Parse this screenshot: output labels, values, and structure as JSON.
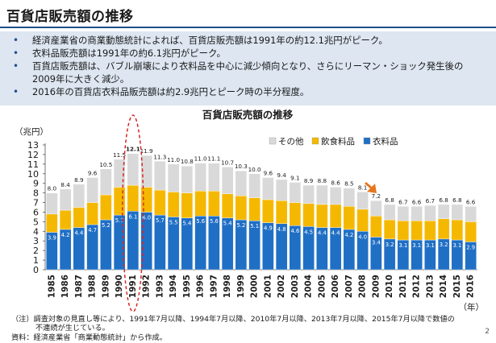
{
  "slide": {
    "title": "百貨店販売額の推移",
    "page_number": "2"
  },
  "bullets": [
    "経済産業省の商業動態統計によれば、百貨店販売額は1991年の約12.1兆円がピーク。",
    "衣料品販売額は1991年の約6.1兆円がピーク。",
    "百貨店販売額は、バブル崩壊により衣料品を中心に減少傾向となり、さらにリーマン・ショック発生後の2009年に大きく減少。",
    "2016年の百貨店衣料品販売額は約2.9兆円とピーク時の半分程度。"
  ],
  "notes": {
    "line1": "（注）調査対象の見直し等により、1991年7月以降、1994年7月以降、2010年7月以降、2013年7月以降、2015年7月以降で数値の",
    "line2": "不連続が生じている。",
    "source": "資料：経済産業省「商業動態統計」から作成。"
  },
  "colors": {
    "clothing": "#1f6fc5",
    "food": "#f5b800",
    "other": "#d9d9d9",
    "highlight_ellipse": "#d62728",
    "arrow": "#e8761e"
  },
  "chart_data": {
    "type": "bar",
    "stacked": true,
    "title": "百貨店販売額の推移",
    "ylabel": "（兆円）",
    "xlabel": "（年）",
    "ylim": [
      0,
      13
    ],
    "yticks": [
      0,
      1,
      2,
      3,
      4,
      5,
      6,
      7,
      8,
      9,
      10,
      11,
      12,
      13
    ],
    "legend_position": "top-right",
    "categories": [
      "1985",
      "1986",
      "1987",
      "1988",
      "1989",
      "1990",
      "1991",
      "1992",
      "1993",
      "1994",
      "1995",
      "1996",
      "1997",
      "1998",
      "1999",
      "2000",
      "2001",
      "2002",
      "2003",
      "2004",
      "2005",
      "2006",
      "2007",
      "2008",
      "2009",
      "2010",
      "2011",
      "2012",
      "2013",
      "2014",
      "2015",
      "2016"
    ],
    "series": [
      {
        "name": "衣料品",
        "color_key": "clothing",
        "values": [
          3.9,
          4.2,
          4.4,
          4.7,
          5.2,
          5.7,
          6.1,
          6.0,
          5.7,
          5.5,
          5.4,
          5.6,
          5.6,
          5.4,
          5.2,
          5.1,
          4.9,
          4.8,
          4.6,
          4.5,
          4.4,
          4.4,
          4.2,
          4.0,
          3.4,
          3.2,
          3.1,
          3.1,
          3.1,
          3.2,
          3.1,
          2.9
        ]
      },
      {
        "name": "飲食料品",
        "color_key": "food",
        "values": [
          1.9,
          2.0,
          2.1,
          2.3,
          2.6,
          2.9,
          2.7,
          2.6,
          2.6,
          2.6,
          2.6,
          2.6,
          2.6,
          2.5,
          2.5,
          2.4,
          2.4,
          2.4,
          2.4,
          2.4,
          2.4,
          2.4,
          2.4,
          2.3,
          2.2,
          2.0,
          2.0,
          2.0,
          2.0,
          2.1,
          2.1,
          2.1
        ]
      },
      {
        "name": "その他",
        "color_key": "other",
        "values": [
          2.2,
          2.2,
          2.4,
          2.6,
          2.7,
          2.9,
          3.3,
          3.3,
          3.0,
          2.9,
          2.8,
          2.9,
          2.9,
          2.8,
          2.6,
          2.5,
          2.3,
          2.2,
          2.1,
          1.9,
          2.0,
          1.8,
          1.9,
          1.8,
          1.6,
          1.6,
          1.5,
          1.5,
          1.6,
          1.5,
          1.6,
          1.6
        ]
      }
    ],
    "totals": [
      8.0,
      8.4,
      8.9,
      9.6,
      10.5,
      11.5,
      12.1,
      11.9,
      11.3,
      11.0,
      10.8,
      11.0,
      11.1,
      10.7,
      10.3,
      10.0,
      9.6,
      9.4,
      9.1,
      8.9,
      8.8,
      8.6,
      8.5,
      8.1,
      7.2,
      6.8,
      6.7,
      6.6,
      6.7,
      6.8,
      6.8,
      6.6
    ],
    "clothing_label_value": [
      3.9,
      4.2,
      4.4,
      4.7,
      5.2,
      5.7,
      6.1,
      6.0,
      5.7,
      5.5,
      5.4,
      5.6,
      5.6,
      5.4,
      5.2,
      5.1,
      4.9,
      4.8,
      4.6,
      4.5,
      4.4,
      4.4,
      4.2,
      4.0,
      3.4,
      3.2,
      3.1,
      3.1,
      3.1,
      3.2,
      3.1,
      2.9
    ],
    "highlight": {
      "category": "1991",
      "shape": "dashed-ellipse"
    },
    "arrow_annotation": {
      "between": [
        "2008",
        "2009"
      ]
    }
  }
}
